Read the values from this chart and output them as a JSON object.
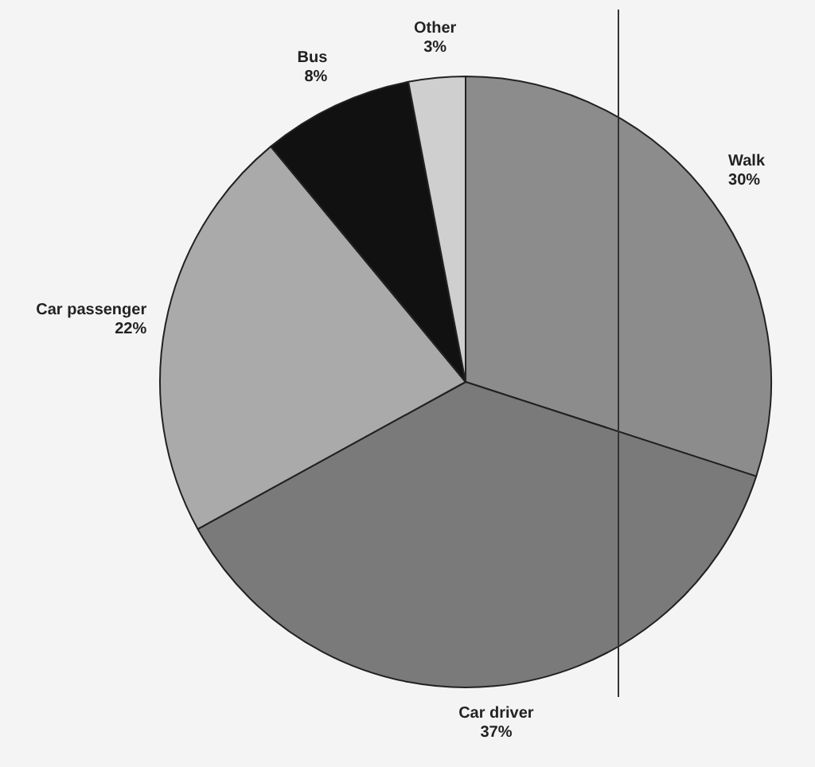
{
  "chart_data": {
    "type": "pie",
    "categories": [
      "Walk",
      "Car driver",
      "Car passenger",
      "Bus",
      "Other"
    ],
    "values": [
      30,
      37,
      22,
      8,
      3
    ],
    "colors": [
      "#8c8c8c",
      "#7a7a7a",
      "#aaaaaa",
      "#111111",
      "#cfcfcf"
    ],
    "value_labels": [
      "30%",
      "37%",
      "22%",
      "8%",
      "3%"
    ],
    "legend": false
  }
}
